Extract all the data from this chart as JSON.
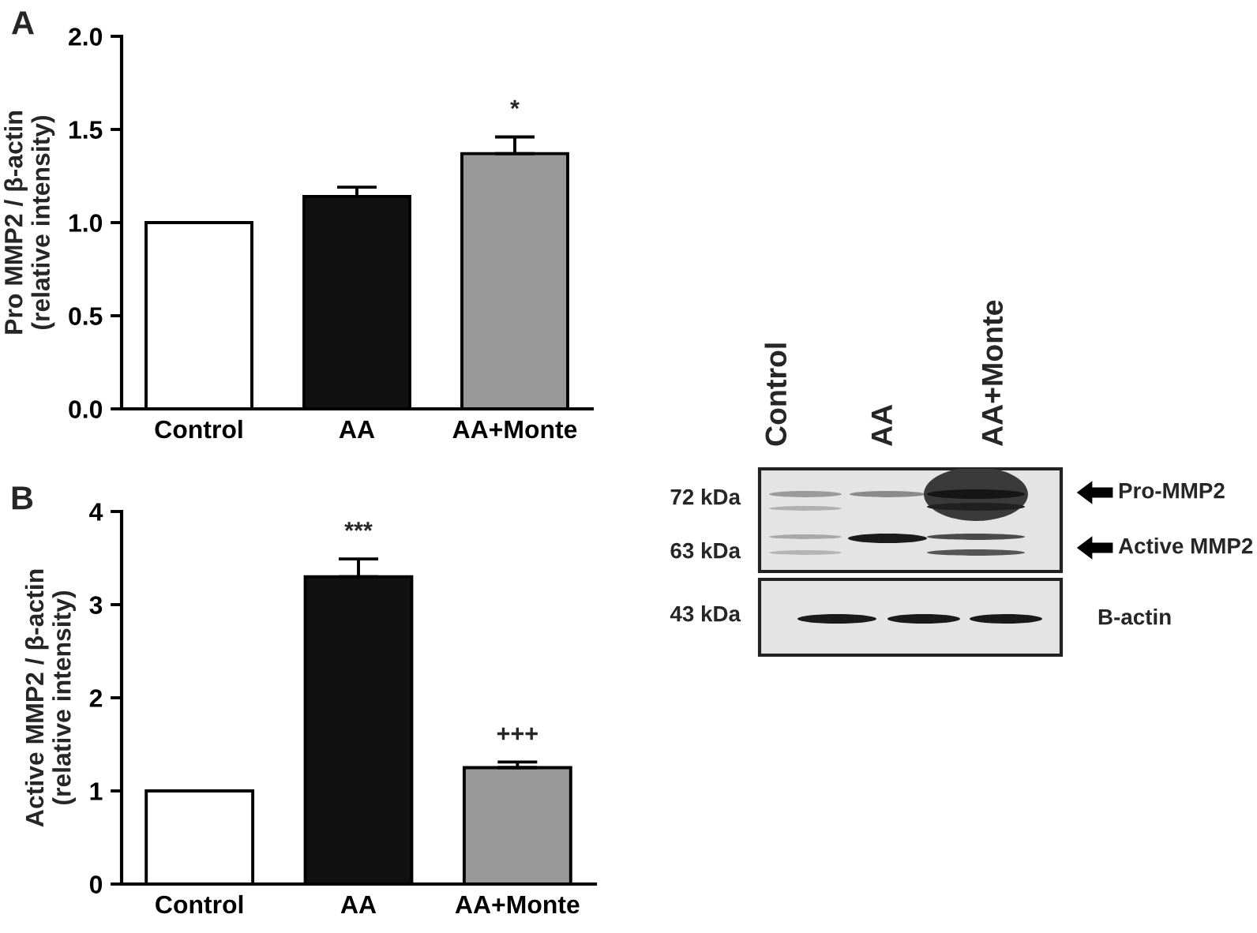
{
  "chart_data": [
    {
      "type": "bar",
      "title": "A",
      "ylabel": "Pro MMP2 / β-actin\n(relative intensity)",
      "categories": [
        "Control",
        "AA",
        "AA+Monte"
      ],
      "values": [
        1.0,
        1.14,
        1.37
      ],
      "colors": [
        "#ffffff",
        "#111111",
        "#999999"
      ],
      "errors": [
        null,
        [
          1.14,
          1.19
        ],
        [
          1.37,
          1.46
        ]
      ],
      "ylim": [
        0,
        2.0
      ],
      "yticks": [
        {
          "value": 0,
          "label": "0.0"
        },
        0.5,
        {
          "value": 1,
          "label": "1.0"
        },
        1.5,
        {
          "value": 2,
          "label": "2.0"
        }
      ],
      "annotations": [
        "*"
      ]
    },
    {
      "type": "bar",
      "title": "B",
      "ylabel": "Active MMP2 / β-actin\n(relative intensity)",
      "categories": [
        "Control",
        "AA",
        "AA+Monte"
      ],
      "values": [
        1.0,
        3.3,
        1.25
      ],
      "colors": [
        "#ffffff",
        "#111111",
        "#999999"
      ],
      "errors": [
        null,
        [
          3.3,
          3.49
        ],
        [
          1.25,
          1.31
        ]
      ],
      "ylim": [
        0,
        4
      ],
      "yticks": [
        0,
        1,
        2,
        3,
        4
      ],
      "annotations": [
        "***",
        "+++"
      ]
    },
    {
      "type": "other",
      "annotations": [
        "Control",
        "AA",
        "AA+Monte",
        "72 kDa",
        "63 kDa",
        "43 kDa",
        "Pro-MMP2",
        "Active MMP2",
        "B-actin"
      ]
    }
  ]
}
